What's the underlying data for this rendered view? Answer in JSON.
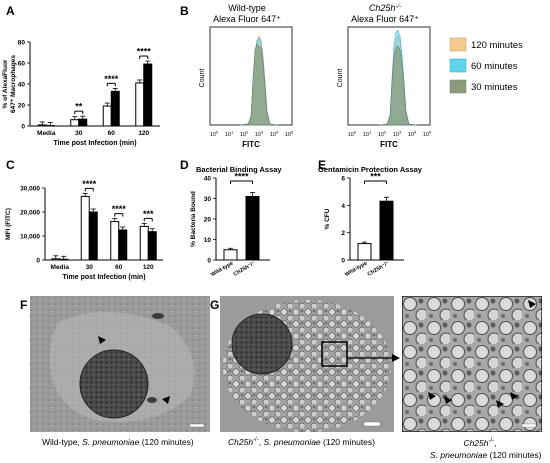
{
  "panel_letters": {
    "A": "A",
    "B": "B",
    "C": "C",
    "D": "D",
    "E": "E",
    "F": "F",
    "G": "G"
  },
  "panel_b": {
    "left_title_1": "Wild-type",
    "left_title_2": "Alexa Fluor 647⁺",
    "right_title_1": "Ch25h",
    "right_title_sup": "-/-",
    "right_title_2": "Alexa Fluor 647⁺",
    "ylabel": "Count",
    "xlabel": "FITC",
    "ticks": [
      "10",
      "10",
      "10",
      "10",
      "10",
      "10"
    ],
    "tick_exps": [
      "0",
      "1",
      "2",
      "3",
      "4",
      "5"
    ],
    "legend": [
      "120 minutes",
      "60 minutes",
      "30 minutes"
    ],
    "colors": {
      "m120": "#f5c990",
      "m60": "#5fd4ea",
      "m30": "#8c9a7e"
    }
  },
  "panel_f": {
    "caption_1": "Wild-type, ",
    "caption_italic": "S. pneumoniae",
    "caption_2": " (120 minutes)"
  },
  "panel_g": {
    "caption_italic_1": "Ch25h",
    "caption_sup": "-/-",
    "caption_mid": ", ",
    "caption_italic_2": "S. pneumoniae",
    "caption_end": " (120 minutes)"
  },
  "panel_g_zoom": {
    "line1_italic": "Ch25h",
    "line1_sup": "-/-",
    "line1_end": ",",
    "line2_italic": "S. pneumoniae",
    "line2_end": " (120 minutes)"
  },
  "chart_data": [
    {
      "id": "A",
      "type": "bar",
      "ylabel": "% of AlexaFluor 647⁺ Macrophages",
      "xlabel": "Time post Infection (min)",
      "categories": [
        "Media",
        "30",
        "60",
        "120"
      ],
      "yticks": [
        "0",
        "20",
        "40",
        "60",
        "80"
      ],
      "ylim": [
        0,
        80
      ],
      "series": [
        {
          "values": [
            1,
            6,
            19,
            41
          ]
        },
        {
          "values": [
            0.5,
            6.5,
            33,
            59
          ]
        }
      ],
      "significance": [
        "",
        "**",
        "****",
        "****"
      ]
    },
    {
      "id": "C",
      "type": "bar",
      "ylabel": "MFI (FITC)",
      "xlabel": "Time post Infection (min)",
      "categories": [
        "Media",
        "30",
        "60",
        "120"
      ],
      "yticks": [
        "0",
        "10,000",
        "20,000",
        "30,000"
      ],
      "ylim": [
        0,
        30000
      ],
      "series": [
        {
          "values": [
            500,
            26500,
            16000,
            14000
          ]
        },
        {
          "values": [
            300,
            20000,
            12500,
            11800
          ]
        }
      ],
      "significance": [
        "",
        "****",
        "****",
        "***"
      ]
    },
    {
      "id": "D",
      "type": "bar",
      "title": "Bacterial Binding Assay",
      "ylabel": "% Bacteria Bound",
      "categories": [
        "Wild-type",
        "Ch25h⁻/⁻"
      ],
      "yticks": [
        "0",
        "10",
        "20",
        "30",
        "40"
      ],
      "ylim": [
        0,
        40
      ],
      "values": [
        5,
        31
      ],
      "significance": "****"
    },
    {
      "id": "E",
      "type": "bar",
      "title": "Gentamicin Protection Assay",
      "ylabel": "% CFU",
      "categories": [
        "Wild-type",
        "Ch25h⁻/⁻"
      ],
      "yticks": [
        "0",
        "2",
        "4",
        "6"
      ],
      "ylim": [
        0,
        6
      ],
      "values": [
        1.2,
        4.3
      ],
      "significance": "***"
    }
  ]
}
